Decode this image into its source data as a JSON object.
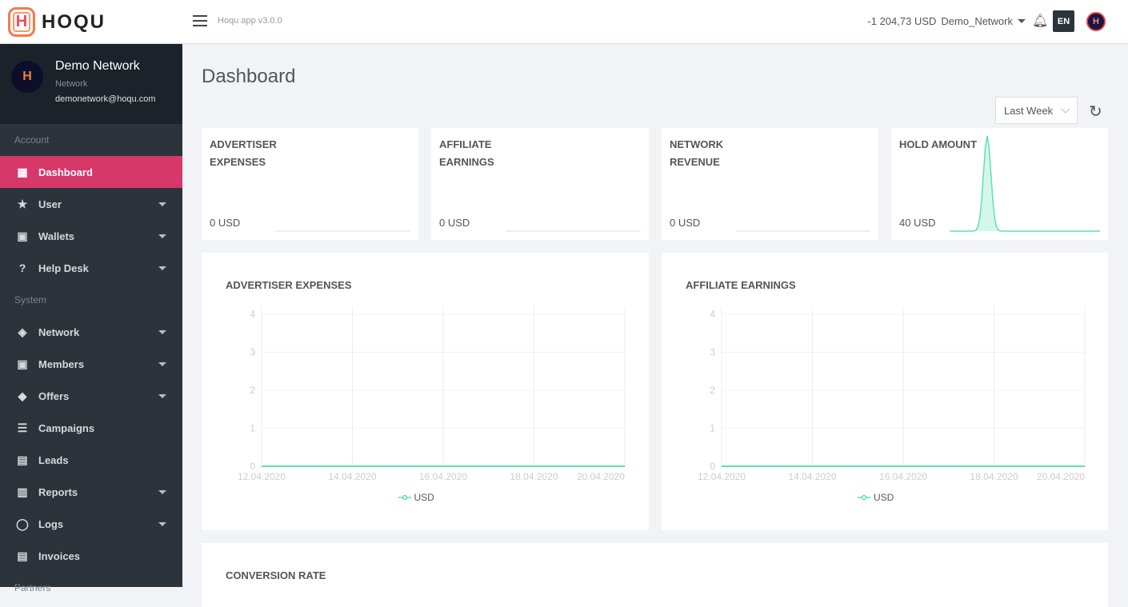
{
  "topbar": {
    "brand": "HOQU",
    "version": "Hoqu app v3.0.0",
    "balance": "-1 204,73 USD",
    "network": "Demo_Network",
    "language": "EN"
  },
  "profile": {
    "name": "Demo Network",
    "role": "Network",
    "email": "demonetwork@hoqu.com"
  },
  "sidebar": {
    "sections": [
      {
        "label": "Account",
        "items": [
          {
            "label": "Dashboard",
            "icon": "dashboard-icon",
            "active": true
          },
          {
            "label": "User",
            "icon": "star-icon",
            "dropdown": true
          },
          {
            "label": "Wallets",
            "icon": "wallet-icon",
            "dropdown": true
          },
          {
            "label": "Help Desk",
            "icon": "help-icon",
            "dropdown": true
          }
        ]
      },
      {
        "label": "System",
        "items": [
          {
            "label": "Network",
            "icon": "widgets-icon",
            "dropdown": true
          },
          {
            "label": "Members",
            "icon": "account-box-icon",
            "dropdown": true
          },
          {
            "label": "Offers",
            "icon": "layers-icon",
            "dropdown": true
          },
          {
            "label": "Campaigns",
            "icon": "list-icon"
          },
          {
            "label": "Leads",
            "icon": "clipboard-icon"
          },
          {
            "label": "Reports",
            "icon": "bar-chart-icon",
            "dropdown": true
          },
          {
            "label": "Logs",
            "icon": "logs-icon",
            "dropdown": true
          },
          {
            "label": "Invoices",
            "icon": "receipt-icon"
          }
        ]
      },
      {
        "label": "Partners",
        "items": []
      }
    ]
  },
  "page": {
    "title": "Dashboard",
    "period": "Last Week"
  },
  "stats": [
    {
      "label": "ADVERTISER EXPENSES",
      "value": "0 USD",
      "spark": [
        0,
        0,
        0,
        0,
        0,
        0,
        0,
        0,
        0
      ]
    },
    {
      "label": "AFFILIATE EARNINGS",
      "value": "0 USD",
      "spark": [
        0,
        0,
        0,
        0,
        0,
        0,
        0,
        0,
        0
      ]
    },
    {
      "label": "NETWORK REVENUE",
      "value": "0 USD",
      "spark": [
        0,
        0,
        0,
        0,
        0,
        0,
        0,
        0,
        0
      ]
    },
    {
      "label": "HOLD AMOUNT",
      "value": "40 USD",
      "spark": [
        0,
        0,
        40,
        0,
        0,
        0,
        0,
        0,
        0
      ]
    }
  ],
  "chart_data": [
    {
      "type": "line",
      "title": "ADVERTISER EXPENSES",
      "x": [
        "12.04.2020",
        "13.04.2020",
        "14.04.2020",
        "15.04.2020",
        "16.04.2020",
        "17.04.2020",
        "18.04.2020",
        "19.04.2020",
        "20.04.2020"
      ],
      "xticks": [
        "12.04.2020",
        "14.04.2020",
        "16.04.2020",
        "18.04.2020",
        "20.04.2020"
      ],
      "series": [
        {
          "name": "USD",
          "values": [
            0,
            0,
            0,
            0,
            0,
            0,
            0,
            0,
            0
          ]
        }
      ],
      "ylim": [
        0,
        4
      ],
      "yticks": [
        "0",
        "1",
        "2",
        "3",
        "4"
      ],
      "grid": true,
      "legend": "bottom",
      "color": "#5fe0b5"
    },
    {
      "type": "line",
      "title": "AFFILIATE EARNINGS",
      "x": [
        "12.04.2020",
        "13.04.2020",
        "14.04.2020",
        "15.04.2020",
        "16.04.2020",
        "17.04.2020",
        "18.04.2020",
        "19.04.2020",
        "20.04.2020"
      ],
      "xticks": [
        "12.04.2020",
        "14.04.2020",
        "16.04.2020",
        "18.04.2020",
        "20.04.2020"
      ],
      "series": [
        {
          "name": "USD",
          "values": [
            0,
            0,
            0,
            0,
            0,
            0,
            0,
            0,
            0
          ]
        }
      ],
      "ylim": [
        0,
        4
      ],
      "yticks": [
        "0",
        "1",
        "2",
        "3",
        "4"
      ],
      "grid": true,
      "legend": "bottom",
      "color": "#5fe0b5"
    }
  ],
  "conversion": {
    "title": "CONVERSION RATE"
  },
  "colors": {
    "accent": "#d6386a",
    "sidebar": "#2c333b",
    "chart": "#5fe0b5"
  }
}
